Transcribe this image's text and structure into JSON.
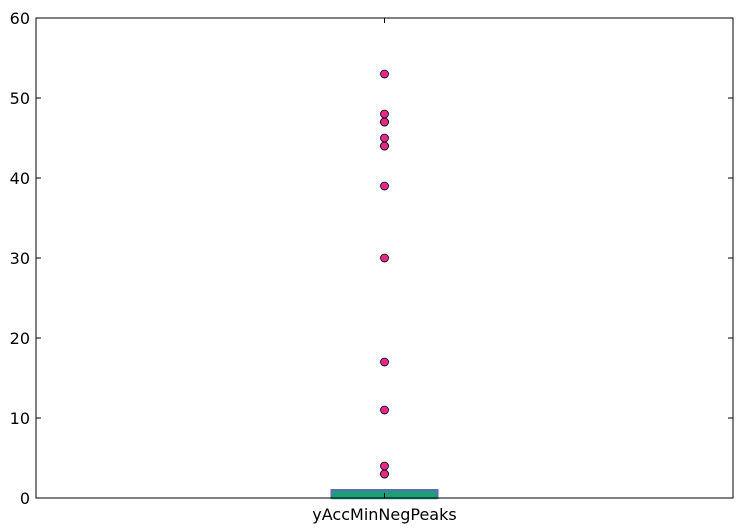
{
  "chart_data": {
    "type": "boxplot",
    "title": "",
    "xlabel": "",
    "ylabel": "",
    "categories": [
      "yAccMinNegPeaks"
    ],
    "ylim": [
      0,
      60
    ],
    "yticks": [
      0,
      10,
      20,
      30,
      40,
      50,
      60
    ],
    "grid": false,
    "legend": "none",
    "series": [
      {
        "category": "yAccMinNegPeaks",
        "whisker_low": 0,
        "q1": 0,
        "median": 0,
        "q3": 1,
        "whisker_high": 1,
        "outliers": [
          3,
          3,
          4,
          11,
          17,
          30,
          39,
          44,
          44,
          45,
          47,
          47,
          48,
          53
        ]
      }
    ],
    "colors": {
      "box_edge": "#5b6fb5",
      "median": "#1d9e78",
      "outlier_fill": "#e7298a",
      "outlier_edge": "#000000",
      "axes": "#000000"
    }
  }
}
